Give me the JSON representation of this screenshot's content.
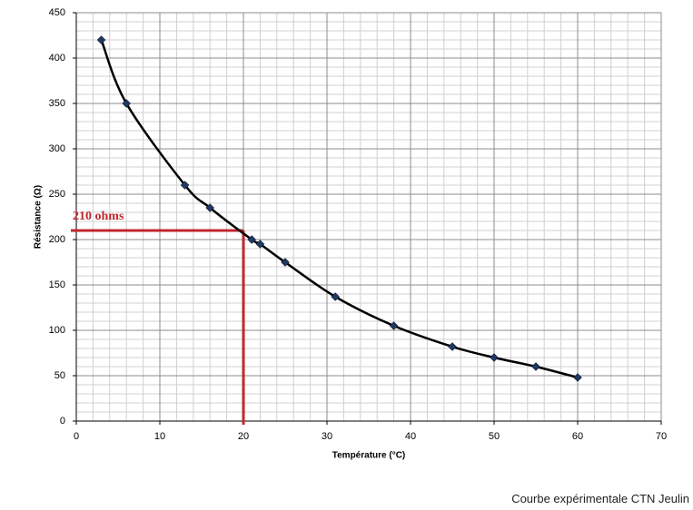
{
  "chart_data": {
    "type": "line",
    "x_label": "Température (°C)",
    "y_label": "Résistance (Ω)",
    "x": [
      3,
      6,
      13,
      16,
      21,
      22,
      25,
      31,
      38,
      45,
      50,
      55,
      60
    ],
    "series": [
      {
        "name": "CTN",
        "color": "#000000",
        "marker_color": "#1f3864",
        "values": [
          420,
          350,
          260,
          235,
          200,
          195,
          175,
          137,
          105,
          82,
          70,
          60,
          48
        ]
      }
    ],
    "xlim": [
      0,
      70
    ],
    "xticks": [
      0,
      10,
      20,
      30,
      40,
      50,
      60,
      70
    ],
    "ylim": [
      0,
      450
    ],
    "yticks": [
      0,
      50,
      100,
      150,
      200,
      250,
      300,
      350,
      400,
      450
    ],
    "grid": true,
    "annotation": {
      "text": "210 ohms",
      "x": 20,
      "y": 210,
      "color": "#c0272d"
    }
  },
  "footer": "Courbe expérimentale CTN Jeulin"
}
